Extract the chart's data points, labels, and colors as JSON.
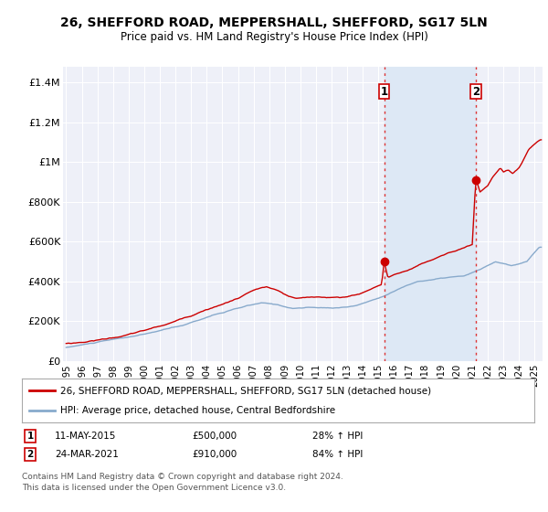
{
  "title": "26, SHEFFORD ROAD, MEPPERSHALL, SHEFFORD, SG17 5LN",
  "subtitle": "Price paid vs. HM Land Registry's House Price Index (HPI)",
  "title_fontsize": 10,
  "subtitle_fontsize": 8.5,
  "ylabel_ticks": [
    "£0",
    "£200K",
    "£400K",
    "£600K",
    "£800K",
    "£1M",
    "£1.2M",
    "£1.4M"
  ],
  "ytick_values": [
    0,
    200000,
    400000,
    600000,
    800000,
    1000000,
    1200000,
    1400000
  ],
  "ylim": [
    0,
    1480000
  ],
  "xlim_start": 1994.8,
  "xlim_end": 2025.5,
  "xtick_years": [
    1995,
    1996,
    1997,
    1998,
    1999,
    2000,
    2001,
    2002,
    2003,
    2004,
    2005,
    2006,
    2007,
    2008,
    2009,
    2010,
    2011,
    2012,
    2013,
    2014,
    2015,
    2016,
    2017,
    2018,
    2019,
    2020,
    2021,
    2022,
    2023,
    2024,
    2025
  ],
  "background_color": "#ffffff",
  "plot_bg_color": "#eef0f8",
  "grid_color": "#ffffff",
  "shade_color": "#dde8f5",
  "red_line_color": "#cc0000",
  "blue_line_color": "#88aacc",
  "transaction1_x": 2015.36,
  "transaction1_y": 500000,
  "transaction2_x": 2021.23,
  "transaction2_y": 910000,
  "vline_color": "#dd3333",
  "vline_style": ":",
  "legend_label_red": "26, SHEFFORD ROAD, MEPPERSHALL, SHEFFORD, SG17 5LN (detached house)",
  "legend_label_blue": "HPI: Average price, detached house, Central Bedfordshire",
  "footnote3": "Contains HM Land Registry data © Crown copyright and database right 2024.",
  "footnote4": "This data is licensed under the Open Government Licence v3.0."
}
